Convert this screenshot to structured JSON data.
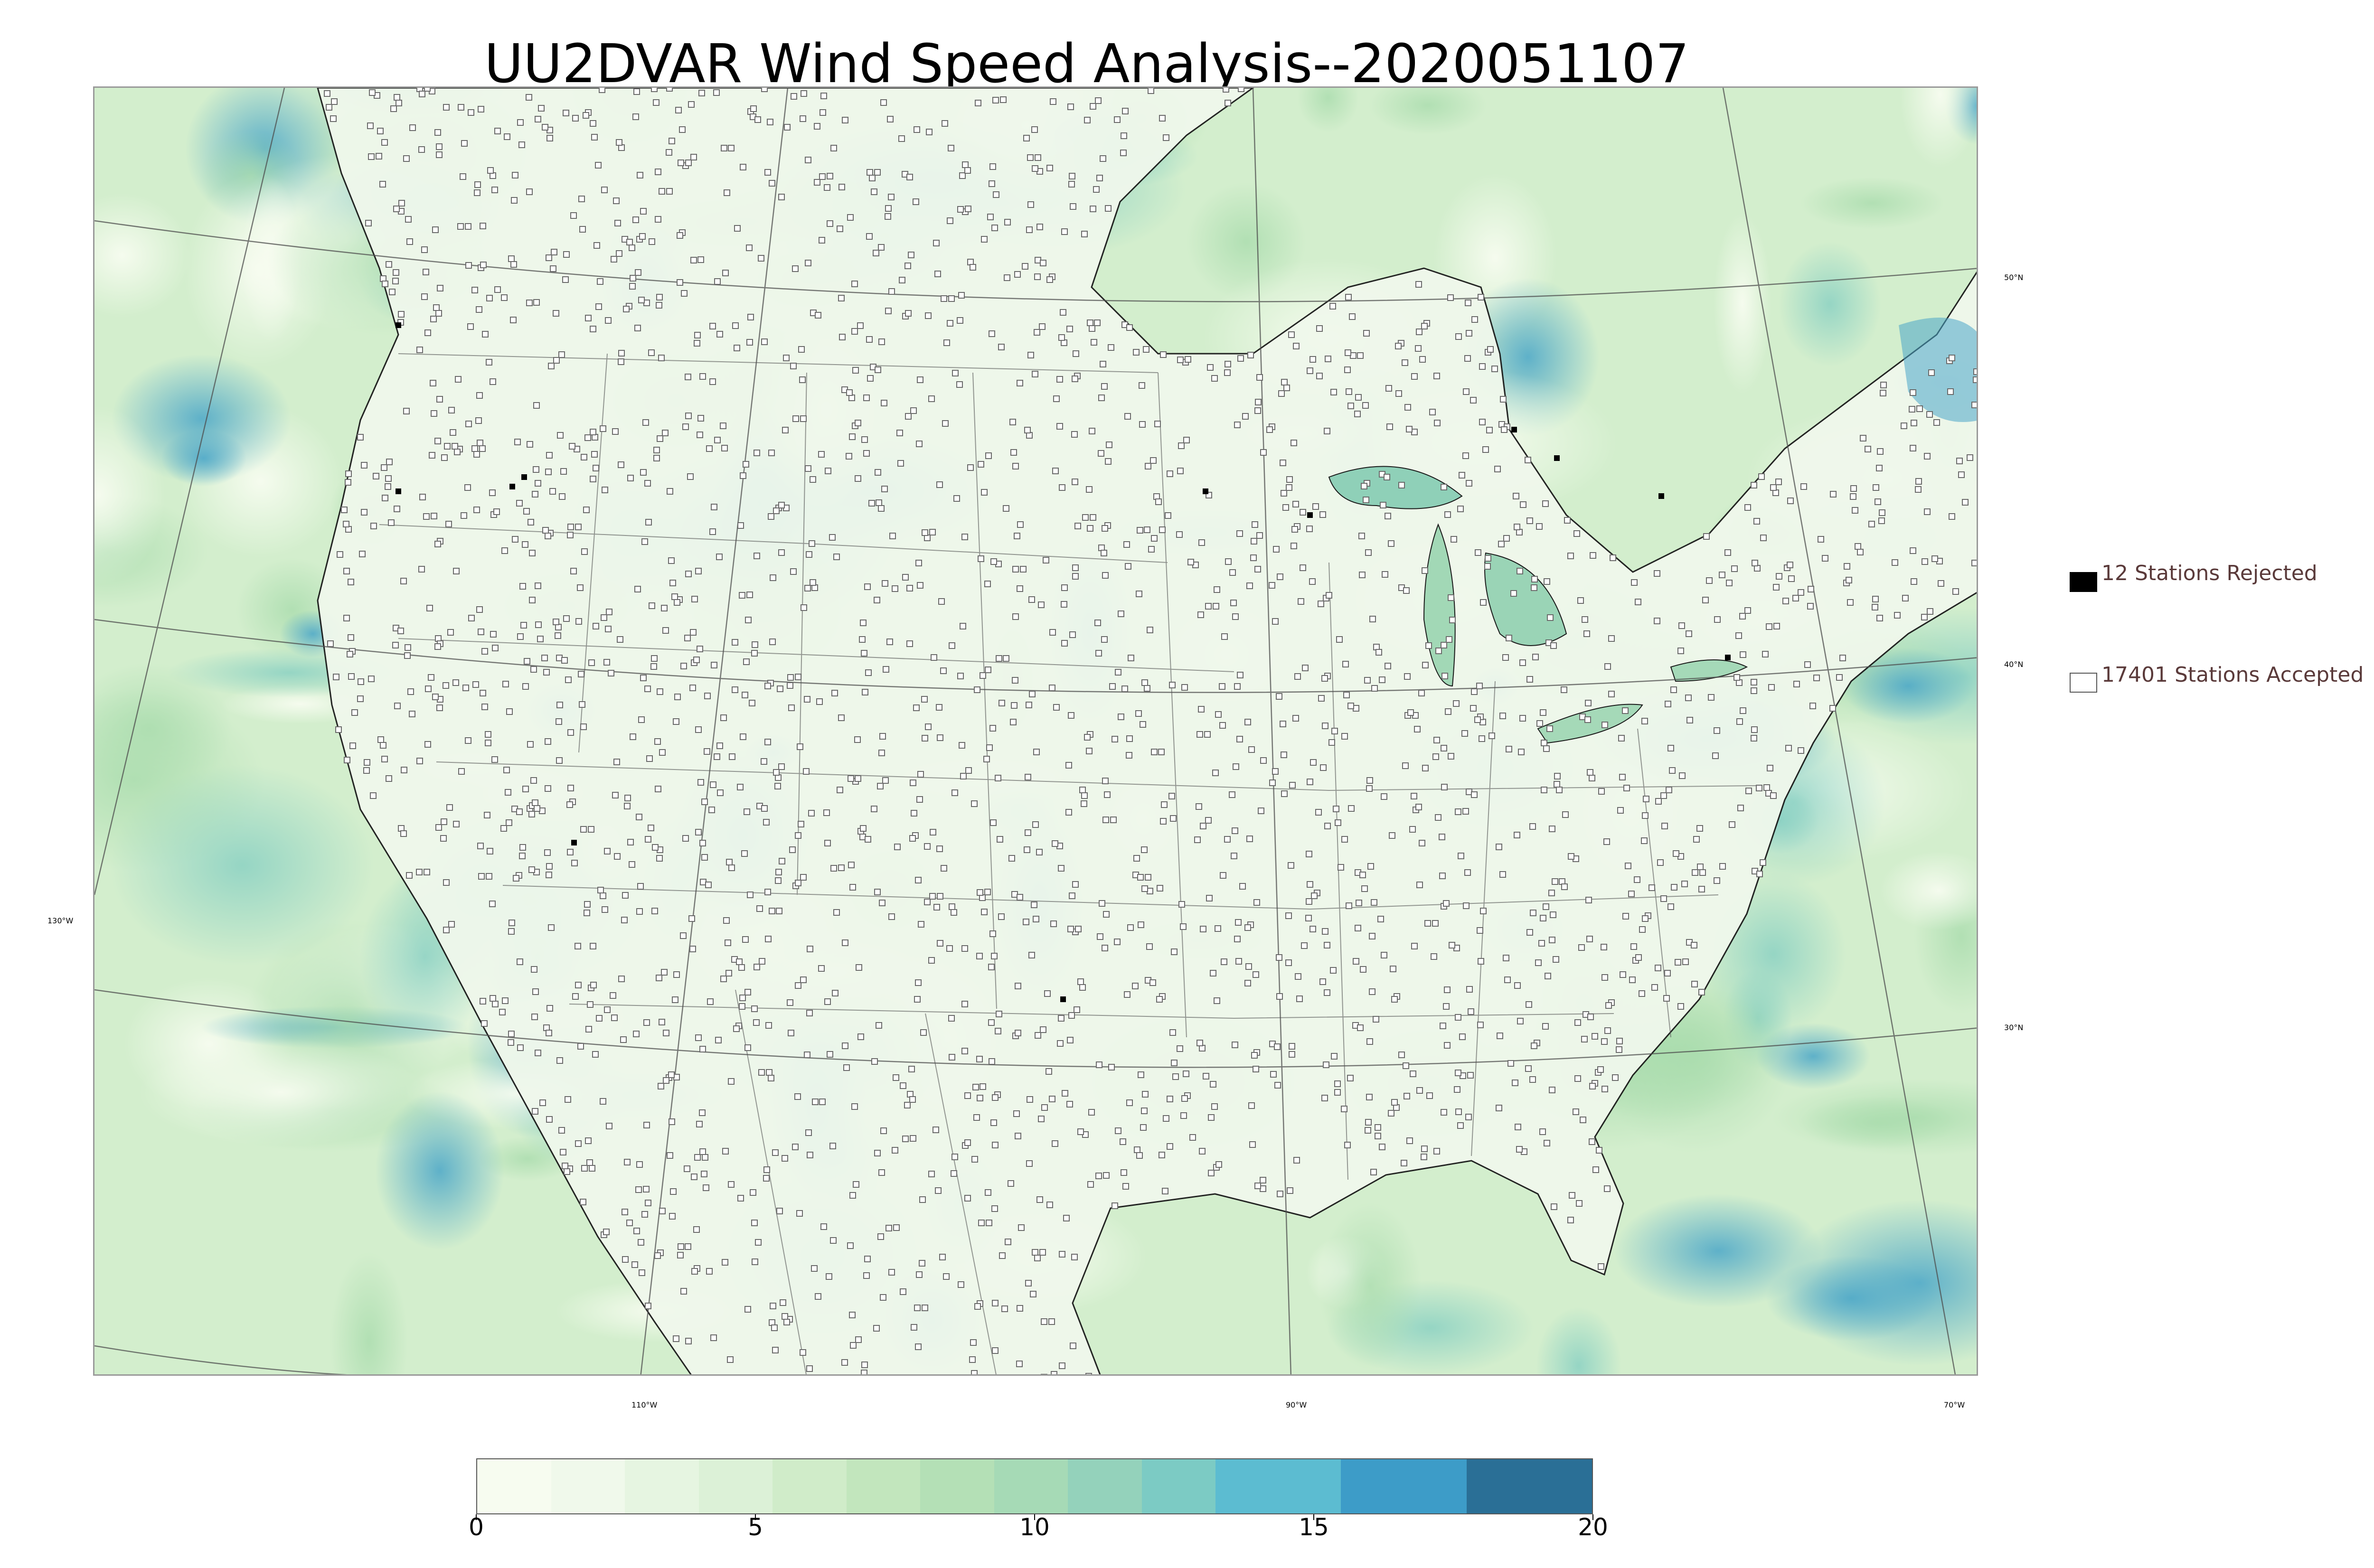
{
  "title": "UU2DVAR Wind Speed Analysis--2020051107",
  "map": {
    "variable": "wind speed",
    "latitude_labels": [
      "50°N",
      "40°N",
      "30°N"
    ],
    "longitude_labels": [
      "130°W",
      "110°W",
      "90°W",
      "70°W"
    ],
    "colors": {
      "land_base": "#eaf6e6",
      "ocean_base": "#c7e8c9",
      "station_fill": "#ffffff",
      "station_stroke": "#6b6b6b",
      "rejected_fill": "#000000",
      "coastline": "#1a1a1a",
      "gridline": "#4d4d4d"
    }
  },
  "legend": {
    "rejected_label": "12 Stations Rejected",
    "accepted_label": "17401 Stations Accepted",
    "rejected_count": 12,
    "accepted_count": 17401
  },
  "colorbar": {
    "min": 0,
    "max": 20,
    "ticks": [
      "0",
      "5",
      "10",
      "15",
      "20"
    ],
    "colors": [
      "#f7fcf0",
      "#f0f9eb",
      "#e6f5e1",
      "#dcf1d7",
      "#d0ecc9",
      "#c2e6bd",
      "#b4e0b6",
      "#a6dab6",
      "#94d2bb",
      "#7ccbc4",
      "#5cbcd1",
      "#3d9cc8",
      "#2a6f96"
    ]
  }
}
